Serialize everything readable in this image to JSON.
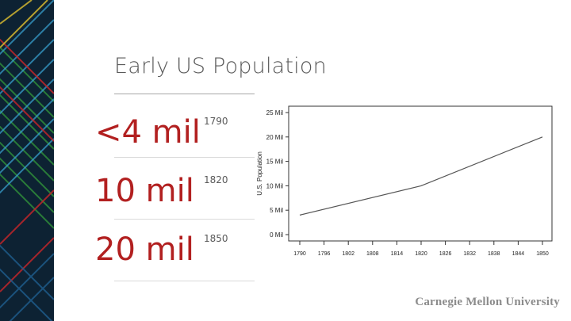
{
  "slide": {
    "title": "Early US Population",
    "stats": [
      {
        "value": "<4 mil",
        "year": "1790"
      },
      {
        "value": "10 mil",
        "year": "1820"
      },
      {
        "value": "20 mil",
        "year": "1850"
      }
    ],
    "footer": "Carnegie Mellon University"
  },
  "colors": {
    "accent": "#b22020",
    "line": "#555555",
    "title": "#595959"
  },
  "chart_data": {
    "type": "line",
    "title": "",
    "xlabel": "",
    "ylabel": "U.S. Population",
    "x": [
      1790,
      1820,
      1850
    ],
    "series": [
      {
        "values": [
          4,
          10,
          20
        ]
      }
    ],
    "x_ticks": [
      "1790",
      "1796",
      "1802",
      "1808",
      "1814",
      "1820",
      "1826",
      "1832",
      "1838",
      "1844",
      "1850"
    ],
    "x_tick_values": [
      1790,
      1796,
      1802,
      1808,
      1814,
      1820,
      1826,
      1832,
      1838,
      1844,
      1850
    ],
    "y_ticks": [
      "0 Mil",
      "5 Mil",
      "10 Mil",
      "15 Mil",
      "20 Mil",
      "25 Mil"
    ],
    "y_tick_values": [
      0,
      5,
      10,
      15,
      20,
      25
    ],
    "xlim": [
      1790,
      1850
    ],
    "ylim": [
      0,
      25
    ],
    "grid": false
  }
}
